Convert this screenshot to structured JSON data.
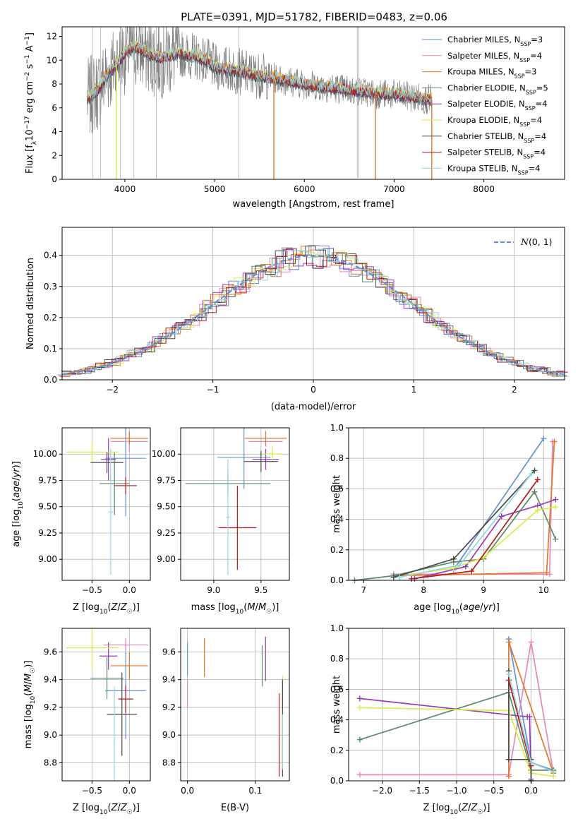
{
  "figure": {
    "title": "PLATE=0391, MJD=51782, FIBERID=0483, z=0.06"
  },
  "colors": {
    "data_gray": "#7f7f7f",
    "models": [
      "#6890d8",
      "#e888b8",
      "#e07828",
      "#5a8a68",
      "#9a38b8",
      "#d8ec48",
      "#4a4a4a",
      "#b81818",
      "#90d8e0"
    ],
    "normal": "#6890d8"
  },
  "chart_data": [
    {
      "id": "spectrum",
      "type": "line",
      "title": "PLATE=0391, MJD=51782, FIBERID=0483, z=0.06",
      "xlabel": "wavelength [Angstrom, rest frame]",
      "ylabel": "Flux [f_λ 10^-17 erg cm^-2 s^-1 A^-1]",
      "xlim": [
        3300,
        8900
      ],
      "ylim": [
        0,
        12.8
      ],
      "xticks": [
        4000,
        5000,
        6000,
        7000,
        8000
      ],
      "yticks": [
        0,
        2,
        4,
        6,
        8,
        10,
        12
      ],
      "grid": false,
      "legend_position": "top-right",
      "legend": [
        {
          "label": "Chabrier MILES, N",
          "sub": "SSP",
          "tail": "=3"
        },
        {
          "label": "Salpeter MILES, N",
          "sub": "SSP",
          "tail": "=4"
        },
        {
          "label": "Kroupa MILES, N",
          "sub": "SSP",
          "tail": "=3"
        },
        {
          "label": "Chabrier ELODIE, N",
          "sub": "SSP",
          "tail": "=5"
        },
        {
          "label": "Salpeter ELODIE, N",
          "sub": "SSP",
          "tail": "=4"
        },
        {
          "label": "Kroupa ELODIE, N",
          "sub": "SSP",
          "tail": "=4"
        },
        {
          "label": "Chabrier STELIB, N",
          "sub": "SSP",
          "tail": "=4"
        },
        {
          "label": "Salpeter STELIB, N",
          "sub": "SSP",
          "tail": "=4"
        },
        {
          "label": "Kroupa STELIB, N",
          "sub": "SSP",
          "tail": "=4"
        }
      ],
      "continuum": {
        "x": [
          3600,
          3700,
          3800,
          3900,
          4000,
          4100,
          4200,
          4300,
          4400,
          4500,
          4600,
          4700,
          4800,
          4900,
          5000,
          5200,
          5400,
          5600,
          5800,
          6000,
          6200,
          6400,
          6600,
          6800,
          7000,
          7200,
          7400
        ],
        "y": [
          6.8,
          7.5,
          8.8,
          9.6,
          10.6,
          11.2,
          10.8,
          10.4,
          10.2,
          10.4,
          10.6,
          10.4,
          10.3,
          10.0,
          9.4,
          9.2,
          8.8,
          8.6,
          8.3,
          8.0,
          7.8,
          7.6,
          7.4,
          7.2,
          7.1,
          6.9,
          6.7
        ]
      }
    },
    {
      "id": "residuals",
      "type": "histogram",
      "xlabel": "(data-model)/error",
      "ylabel": "Normed distribution",
      "xlim": [
        -2.5,
        2.5
      ],
      "ylim": [
        0,
        0.49
      ],
      "xticks": [
        -2,
        -1,
        0,
        1,
        2
      ],
      "yticks": [
        0.0,
        0.1,
        0.2,
        0.3,
        0.4
      ],
      "grid": true,
      "legend_position": "top-right",
      "legend_label": "N(0, 1)"
    },
    {
      "id": "age_vs_Z",
      "type": "errorbar",
      "xlabel": "Z [log10(Z/Z☉)]",
      "ylabel": "age [log10(age/yr)]",
      "xlim": [
        -0.9,
        0.28
      ],
      "ylim": [
        8.8,
        10.25
      ],
      "xticks": [
        -0.5,
        0.0
      ],
      "yticks": [
        9.0,
        9.25,
        9.5,
        9.75,
        10.0
      ],
      "grid": true,
      "points": [
        {
          "x": -0.05,
          "y": 9.96,
          "xerr": 0.27,
          "yerr": 0.55
        },
        {
          "x": 0.0,
          "y": 10.12,
          "xerr": 0.25,
          "yerr": 0.1
        },
        {
          "x": 0.0,
          "y": 10.15,
          "xerr": 0.25,
          "yerr": 0.06
        },
        {
          "x": -0.2,
          "y": 9.72,
          "xerr": 0.2,
          "yerr": 0.3
        },
        {
          "x": -0.28,
          "y": 9.95,
          "xerr": 0.1,
          "yerr": 0.2
        },
        {
          "x": -0.5,
          "y": 10.02,
          "xerr": 0.35,
          "yerr": 0.1
        },
        {
          "x": -0.3,
          "y": 9.92,
          "xerr": 0.22,
          "yerr": 0.1
        },
        {
          "x": -0.05,
          "y": 9.7,
          "xerr": 0.15,
          "yerr": 0.08
        },
        {
          "x": -0.25,
          "y": 9.45,
          "xerr": 0.03,
          "yerr": 0.6
        }
      ]
    },
    {
      "id": "age_vs_mass",
      "type": "errorbar",
      "xlabel": "mass [log10(M/M☉)]",
      "ylabel": "",
      "xlim": [
        8.65,
        9.8
      ],
      "ylim": [
        8.8,
        10.25
      ],
      "xticks": [
        9.0,
        9.5
      ],
      "yticks": [
        9.0,
        9.25,
        9.5,
        9.75,
        10.0
      ],
      "grid": true,
      "points": [
        {
          "x": 9.32,
          "y": 9.97,
          "xerr": 0.28,
          "yerr": 0.3
        },
        {
          "x": 9.55,
          "y": 10.12,
          "xerr": 0.18,
          "yerr": 0.05
        },
        {
          "x": 9.55,
          "y": 10.15,
          "xerr": 0.22,
          "yerr": 0.07
        },
        {
          "x": 9.15,
          "y": 9.72,
          "xerr": 0.45,
          "yerr": 0.1
        },
        {
          "x": 9.55,
          "y": 9.95,
          "xerr": 0.14,
          "yerr": 0.1
        },
        {
          "x": 9.62,
          "y": 10.0,
          "xerr": 0.1,
          "yerr": 0.08
        },
        {
          "x": 9.5,
          "y": 9.93,
          "xerr": 0.18,
          "yerr": 0.1
        },
        {
          "x": 9.25,
          "y": 9.3,
          "xerr": 0.2,
          "yerr": 0.4
        },
        {
          "x": 9.15,
          "y": 9.4,
          "xerr": 0.02,
          "yerr": 0.55
        }
      ]
    },
    {
      "id": "weight_vs_age",
      "type": "line",
      "xlabel": "age [log10(age/yr)]",
      "ylabel": "mass weight",
      "xlim": [
        6.75,
        10.35
      ],
      "ylim": [
        0,
        1.0
      ],
      "xticks": [
        7,
        8,
        9,
        10
      ],
      "yticks": [
        0.0,
        0.2,
        0.4,
        0.6,
        0.8,
        1.0
      ],
      "grid": true,
      "series": [
        {
          "x": [
            8.5,
            10.0
          ],
          "y": [
            0.07,
            0.93
          ]
        },
        {
          "x": [
            7.5,
            10.1,
            10.15
          ],
          "y": [
            0.04,
            0.04,
            0.91
          ]
        },
        {
          "x": [
            7.5,
            10.05,
            10.18
          ],
          "y": [
            0.03,
            0.05,
            0.91
          ]
        },
        {
          "x": [
            6.85,
            7.5,
            8.5,
            9.0,
            9.85,
            10.2
          ],
          "y": [
            0.0,
            0.03,
            0.12,
            0.14,
            0.58,
            0.27
          ]
        },
        {
          "x": [
            7.85,
            8.7,
            9.3,
            9.9,
            10.2
          ],
          "y": [
            0.01,
            0.09,
            0.42,
            0.49,
            0.53
          ]
        },
        {
          "x": [
            7.8,
            8.5,
            9.0,
            9.9,
            10.2
          ],
          "y": [
            0.04,
            0.08,
            0.15,
            0.46,
            0.48
          ]
        },
        {
          "x": [
            7.5,
            8.5,
            9.85
          ],
          "y": [
            0.02,
            0.14,
            0.72
          ]
        },
        {
          "x": [
            7.8,
            8.8,
            9.9
          ],
          "y": [
            0.01,
            0.06,
            0.66
          ]
        },
        {
          "x": [
            7.6,
            8.6,
            9.8
          ],
          "y": [
            0.02,
            0.1,
            0.7
          ]
        }
      ]
    },
    {
      "id": "mass_vs_Z",
      "type": "errorbar",
      "xlabel": "Z [log10(Z/Z☉)]",
      "ylabel": "mass [log10(M/M☉)]",
      "xlim": [
        -0.9,
        0.28
      ],
      "ylim": [
        8.67,
        9.77
      ],
      "xticks": [
        -0.5,
        0.0
      ],
      "yticks": [
        8.8,
        9.0,
        9.2,
        9.4,
        9.6
      ],
      "grid": true,
      "points": [
        {
          "x": -0.05,
          "y": 9.32,
          "xerr": 0.27,
          "yerr": 0.35
        },
        {
          "x": -0.05,
          "y": 9.65,
          "xerr": 0.3,
          "yerr": 0.05
        },
        {
          "x": 0.0,
          "y": 9.5,
          "xerr": 0.25,
          "yerr": 0.1
        },
        {
          "x": -0.3,
          "y": 9.41,
          "xerr": 0.22,
          "yerr": 0.15
        },
        {
          "x": -0.28,
          "y": 9.57,
          "xerr": 0.12,
          "yerr": 0.1
        },
        {
          "x": -0.5,
          "y": 9.63,
          "xerr": 0.35,
          "yerr": 0.15
        },
        {
          "x": -0.1,
          "y": 9.15,
          "xerr": 0.2,
          "yerr": 0.3
        },
        {
          "x": -0.05,
          "y": 9.26,
          "xerr": 0.1,
          "yerr": 0.1
        },
        {
          "x": -0.2,
          "y": 9.0,
          "xerr": 0.02,
          "yerr": 0.35
        }
      ]
    },
    {
      "id": "mass_vs_ebv",
      "type": "errorbar",
      "xlabel": "E(B-V)",
      "ylabel": "",
      "xlim": [
        -0.01,
        0.15
      ],
      "ylim": [
        8.67,
        9.77
      ],
      "xticks": [
        0.0,
        0.1
      ],
      "yticks": [
        8.8,
        9.0,
        9.2,
        9.4,
        9.6
      ],
      "grid": true,
      "points": [
        {
          "x": 0.0,
          "y": 9.55,
          "xerr": 0.0,
          "yerr": 0.12
        },
        {
          "x": 0.0,
          "y": 9.3,
          "xerr": 0.0,
          "yerr": 0.1
        },
        {
          "x": 0.025,
          "y": 9.56,
          "xerr": 0.0,
          "yerr": 0.14
        },
        {
          "x": 0.11,
          "y": 9.5,
          "xerr": 0.0,
          "yerr": 0.15
        },
        {
          "x": 0.115,
          "y": 9.55,
          "xerr": 0.0,
          "yerr": 0.16
        },
        {
          "x": 0.14,
          "y": 9.18,
          "xerr": 0.0,
          "yerr": 0.25
        },
        {
          "x": 0.14,
          "y": 9.05,
          "xerr": 0.0,
          "yerr": 0.35
        },
        {
          "x": 0.135,
          "y": 9.0,
          "xerr": 0.0,
          "yerr": 0.3
        },
        {
          "x": 0.14,
          "y": 8.95,
          "xerr": 0.0,
          "yerr": 0.2
        }
      ]
    },
    {
      "id": "weight_vs_Z",
      "type": "line",
      "xlabel": "Z [log10(Z/Z☉)]",
      "ylabel": "mass weight",
      "xlim": [
        -2.45,
        0.45
      ],
      "ylim": [
        0,
        1.0
      ],
      "xticks": [
        -2.0,
        -1.5,
        -1.0,
        -0.5,
        0.0
      ],
      "yticks": [
        0.0,
        0.2,
        0.4,
        0.6,
        0.8,
        1.0
      ],
      "grid": true,
      "series": [
        {
          "x": [
            -0.3,
            0.0,
            0.3
          ],
          "y": [
            0.93,
            0.12,
            0.07
          ]
        },
        {
          "x": [
            -2.3,
            -0.3,
            0.0,
            0.3
          ],
          "y": [
            0.04,
            0.04,
            0.91,
            0.05
          ]
        },
        {
          "x": [
            -0.3,
            -0.3,
            0.3
          ],
          "y": [
            0.03,
            0.91,
            0.05
          ]
        },
        {
          "x": [
            -2.3,
            -0.3,
            0.0,
            0.3
          ],
          "y": [
            0.27,
            0.58,
            0.07,
            0.07
          ]
        },
        {
          "x": [
            -2.3,
            -0.05,
            -0.02,
            0.0
          ],
          "y": [
            0.54,
            0.42,
            0.42,
            0.01
          ]
        },
        {
          "x": [
            -2.3,
            -0.3,
            0.0,
            0.3
          ],
          "y": [
            0.48,
            0.46,
            0.05,
            0.03
          ]
        },
        {
          "x": [
            -0.3,
            -0.3,
            0.0,
            0.0
          ],
          "y": [
            0.72,
            0.14,
            0.14,
            0.0
          ]
        },
        {
          "x": [
            -0.3,
            0.0
          ],
          "y": [
            0.66,
            0.1
          ]
        },
        {
          "x": [
            -0.3,
            0.0,
            0.3
          ],
          "y": [
            0.7,
            0.12,
            0.06
          ]
        }
      ]
    }
  ]
}
